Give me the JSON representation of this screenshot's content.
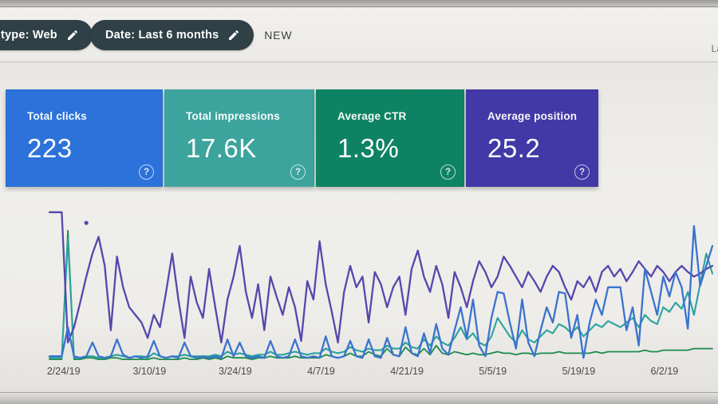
{
  "toolbar": {
    "filter_chips": [
      {
        "label": "type: Web"
      },
      {
        "label": "Date: Last 6 months"
      }
    ],
    "new_button": {
      "label": "NEW"
    },
    "partial_right_text": "La"
  },
  "ui": {
    "plus_glyph": "+",
    "help_glyph": "?"
  },
  "cards": [
    {
      "label": "Total clicks",
      "value": "223",
      "color": "#2c72da"
    },
    {
      "label": "Total impressions",
      "value": "17.6K",
      "color": "#3ca49d"
    },
    {
      "label": "Average CTR",
      "value": "1.3%",
      "color": "#0e8363"
    },
    {
      "label": "Average position",
      "value": "25.2",
      "color": "#4238a6"
    }
  ],
  "chart_data": {
    "type": "line",
    "x_labels": [
      "2/24/19",
      "3/10/19",
      "3/24/19",
      "4/7/19",
      "4/21/19",
      "5/5/19",
      "5/19/19",
      "6/2/19"
    ],
    "x_unit": "day (ticks every 14 days)",
    "ylabel": "",
    "xlabel": "",
    "grid": false,
    "legend_position": "none",
    "value_scale": "normalized 0-100 of plot height; estimated from pixels (no y-axis labels visible)",
    "series": [
      {
        "key": "ctr",
        "name": "Average CTR",
        "color": "#1d8a4e",
        "stroke_width": 1.8,
        "values": [
          1,
          1,
          1,
          85,
          1,
          1,
          2,
          2,
          1,
          1,
          2,
          2,
          1,
          1,
          1,
          1,
          1,
          2,
          1,
          1,
          1,
          1,
          2,
          1,
          1,
          2,
          1,
          2,
          1,
          3,
          2,
          2,
          2,
          1,
          2,
          2,
          3,
          2,
          2,
          2,
          3,
          2,
          2,
          2,
          2,
          4,
          3,
          2,
          3,
          5,
          3,
          3,
          6,
          4,
          3,
          8,
          4,
          3,
          9,
          5,
          4,
          8,
          4,
          10,
          5,
          4,
          6,
          5,
          4,
          5,
          4,
          4,
          5,
          6,
          5,
          5,
          4,
          5,
          5,
          4,
          5,
          5,
          5,
          6,
          5,
          5,
          5,
          5,
          5,
          6,
          5,
          6,
          6,
          6,
          6,
          6,
          6,
          7,
          6,
          6,
          7,
          7,
          7,
          7,
          7,
          8,
          8,
          8,
          8
        ]
      },
      {
        "key": "impressions",
        "name": "Total impressions",
        "color": "#2aa3a0",
        "stroke_width": 2.1,
        "values": [
          2,
          2,
          2,
          80,
          2,
          2,
          3,
          3,
          2,
          2,
          3,
          4,
          3,
          2,
          3,
          3,
          2,
          5,
          3,
          2,
          3,
          3,
          4,
          3,
          3,
          3,
          3,
          4,
          3,
          6,
          4,
          5,
          4,
          3,
          4,
          4,
          6,
          4,
          4,
          5,
          6,
          5,
          4,
          5,
          5,
          8,
          6,
          5,
          6,
          9,
          7,
          6,
          8,
          7,
          7,
          10,
          8,
          8,
          12,
          9,
          8,
          14,
          10,
          16,
          12,
          10,
          15,
          22,
          14,
          18,
          12,
          10,
          16,
          28,
          22,
          16,
          12,
          20,
          14,
          12,
          16,
          20,
          18,
          24,
          22,
          18,
          22,
          16,
          20,
          24,
          22,
          26,
          24,
          22,
          25,
          28,
          22,
          30,
          26,
          24,
          35,
          32,
          38,
          34,
          45,
          30,
          50,
          70,
          57
        ]
      },
      {
        "key": "position",
        "name": "Average position",
        "color": "#5746ad",
        "stroke_width": 2.3,
        "values": [
          97,
          97,
          97,
          12,
          22,
          38,
          55,
          70,
          81,
          62,
          20,
          68,
          48,
          35,
          30,
          25,
          15,
          30,
          22,
          45,
          70,
          40,
          15,
          55,
          38,
          28,
          60,
          35,
          12,
          40,
          55,
          75,
          45,
          28,
          50,
          20,
          55,
          42,
          30,
          48,
          35,
          13,
          52,
          40,
          78,
          50,
          32,
          12,
          45,
          62,
          48,
          55,
          25,
          58,
          50,
          35,
          48,
          55,
          30,
          60,
          72,
          55,
          45,
          62,
          50,
          28,
          58,
          48,
          35,
          52,
          65,
          58,
          48,
          55,
          68,
          62,
          55,
          48,
          58,
          52,
          45,
          55,
          62,
          58,
          48,
          40,
          52,
          48,
          55,
          45,
          58,
          62,
          55,
          60,
          52,
          58,
          65,
          60,
          55,
          62,
          58,
          52,
          58,
          62,
          58,
          55,
          57,
          60,
          62
        ]
      },
      {
        "key": "clicks",
        "name": "Total clicks",
        "color": "#3a73cf",
        "stroke_width": 2.3,
        "values": [
          3,
          3,
          3,
          22,
          3,
          2,
          3,
          12,
          3,
          2,
          3,
          14,
          4,
          2,
          3,
          2,
          3,
          13,
          3,
          2,
          3,
          2,
          12,
          3,
          2,
          3,
          2,
          3,
          2,
          14,
          3,
          12,
          3,
          2,
          3,
          2,
          13,
          3,
          2,
          3,
          14,
          3,
          2,
          3,
          2,
          16,
          3,
          2,
          3,
          13,
          3,
          2,
          14,
          3,
          2,
          15,
          4,
          3,
          22,
          5,
          3,
          18,
          5,
          24,
          8,
          4,
          20,
          35,
          15,
          40,
          10,
          3,
          28,
          45,
          44,
          25,
          8,
          40,
          12,
          3,
          20,
          35,
          25,
          45,
          44,
          15,
          30,
          2,
          25,
          40,
          30,
          48,
          48,
          48,
          20,
          35,
          10,
          60,
          45,
          30,
          55,
          42,
          58,
          48,
          21,
          88,
          49,
          62,
          75
        ]
      }
    ],
    "isolated_point": {
      "series": "position",
      "index": 6,
      "value": 90,
      "color": "#5746ad"
    }
  }
}
